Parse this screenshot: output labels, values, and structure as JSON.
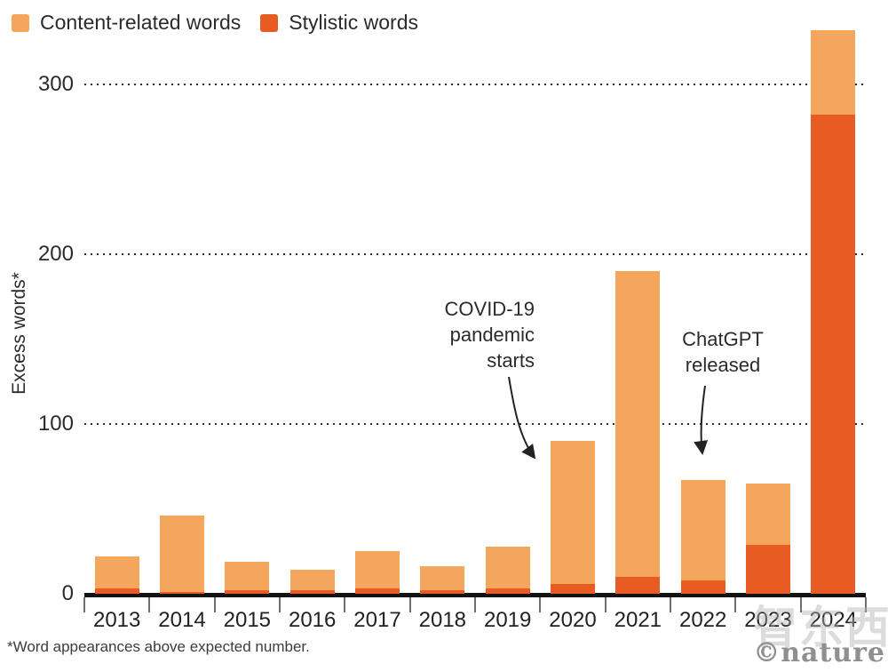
{
  "legend": {
    "items": [
      {
        "label": "Content-related words",
        "color": "#F4A75C"
      },
      {
        "label": "Stylistic words",
        "color": "#E85C24"
      }
    ]
  },
  "chart_data": {
    "type": "bar",
    "stacked": true,
    "categories": [
      "2013",
      "2014",
      "2015",
      "2016",
      "2017",
      "2018",
      "2019",
      "2020",
      "2021",
      "2022",
      "2023",
      "2024"
    ],
    "series": [
      {
        "name": "Stylistic words",
        "color": "#E85C24",
        "values": [
          3,
          1,
          2,
          2,
          3,
          2,
          3,
          6,
          10,
          8,
          29,
          282
        ]
      },
      {
        "name": "Content-related words",
        "color": "#F4A75C",
        "values": [
          19,
          45,
          17,
          12,
          22,
          14,
          25,
          84,
          180,
          59,
          36,
          50
        ]
      }
    ],
    "totals": [
      22,
      46,
      19,
      14,
      25,
      16,
      28,
      90,
      190,
      67,
      65,
      332
    ],
    "ylabel": "Excess words*",
    "yticks": [
      0,
      100,
      200,
      300
    ],
    "ylim": [
      0,
      340
    ],
    "grid": "dotted-horizontal",
    "legend_position": "top-left",
    "annotations": [
      {
        "text": "COVID-19 pandemic starts",
        "target_year": "2020"
      },
      {
        "text": "ChatGPT released",
        "target_year": "2022"
      }
    ]
  },
  "yaxis": {
    "label": "Excess words*"
  },
  "annotations": {
    "covid": {
      "lines": [
        "COVID-19",
        "pandemic",
        "starts"
      ]
    },
    "chatgpt": {
      "lines": [
        "ChatGPT",
        "released"
      ]
    }
  },
  "footnote": "*Word appearances above expected number.",
  "watermark": {
    "logo": "©nature",
    "background_text": "智东西"
  }
}
